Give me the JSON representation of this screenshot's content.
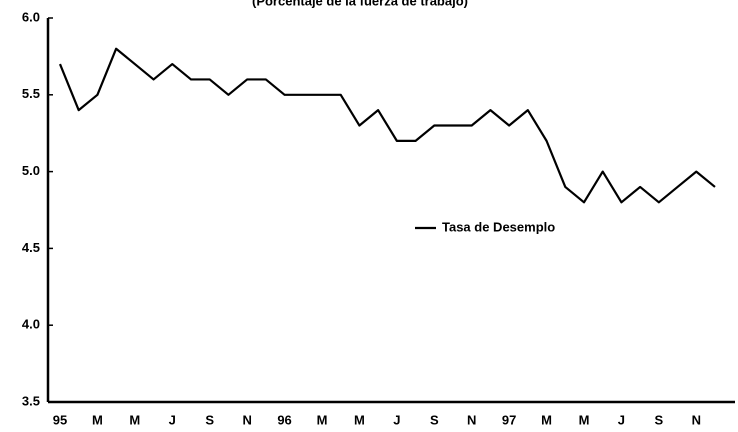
{
  "chart_data": {
    "type": "line",
    "title": "(Porcentaje de la fuerza de trabajo)",
    "categories": [
      "95",
      null,
      "M",
      null,
      "M",
      null,
      "J",
      null,
      "S",
      null,
      "N",
      null,
      "96",
      null,
      "M",
      null,
      "M",
      null,
      "J",
      null,
      "S",
      null,
      "N",
      null,
      "97",
      null,
      "M",
      null,
      "M",
      null,
      "J",
      null,
      "S",
      null,
      "N",
      null
    ],
    "series": [
      {
        "name": "Tasa de Desemplo",
        "color": "#000000",
        "values": [
          5.7,
          5.4,
          5.5,
          5.8,
          5.7,
          5.6,
          5.7,
          5.6,
          5.6,
          5.5,
          5.6,
          5.6,
          5.5,
          5.5,
          5.5,
          5.5,
          5.3,
          5.4,
          5.2,
          5.2,
          5.3,
          5.3,
          5.3,
          5.4,
          5.3,
          5.4,
          5.2,
          4.9,
          4.8,
          5.0,
          4.8,
          4.9,
          4.8,
          4.9,
          5.0,
          4.9
        ]
      }
    ],
    "ylim": [
      3.5,
      6.0
    ],
    "yticks": [
      {
        "value": 3.5,
        "label": "3.5"
      },
      {
        "value": 4.0,
        "label": "4.0"
      },
      {
        "value": 4.5,
        "label": "4.5"
      },
      {
        "value": 5.0,
        "label": "5.0"
      },
      {
        "value": 5.5,
        "label": "5.5"
      },
      {
        "value": 6.0,
        "label": "6.0"
      }
    ],
    "grid": false
  }
}
